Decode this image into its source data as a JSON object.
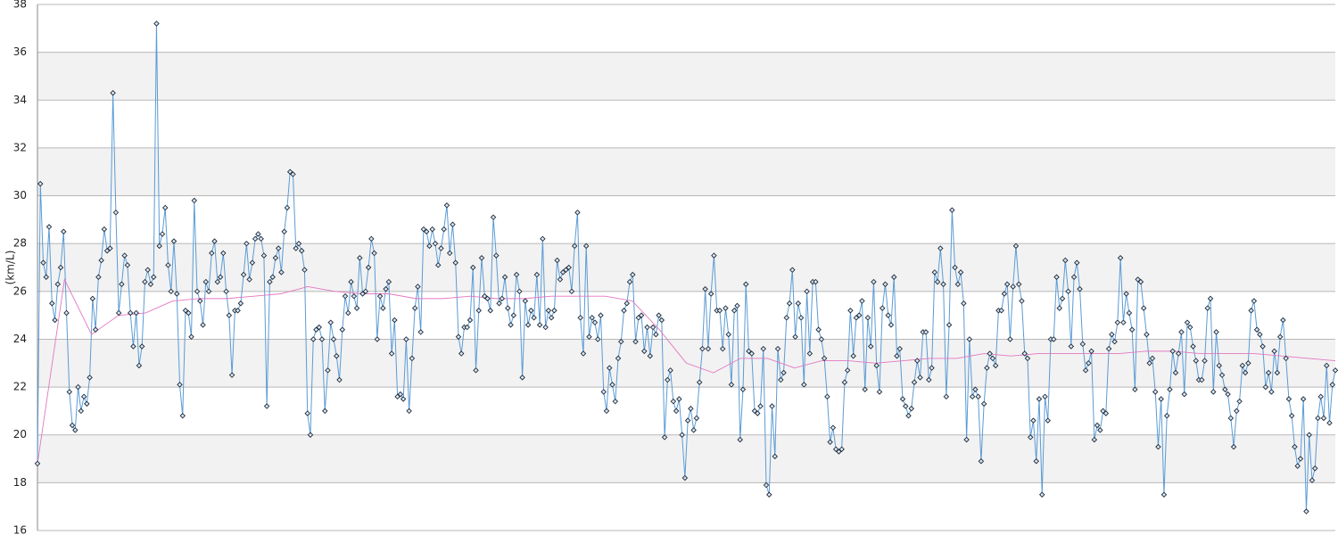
{
  "chart_data": {
    "type": "line",
    "y_label": "(km/L)",
    "ylim": [
      16,
      38
    ],
    "yticks": [
      16,
      18,
      20,
      22,
      24,
      26,
      28,
      30,
      32,
      34,
      36,
      38
    ],
    "grid": true,
    "series": [
      {
        "name": "",
        "color": "#5b9bd5",
        "markers": true,
        "values": [
          18.8,
          30.5,
          27.2,
          26.6,
          28.7,
          25.5,
          24.8,
          26.3,
          27.0,
          28.5,
          25.1,
          21.8,
          20.4,
          20.2,
          22.0,
          21.0,
          21.6,
          21.3,
          22.4,
          25.7,
          24.4,
          26.6,
          27.3,
          28.6,
          27.7,
          27.8,
          34.3,
          29.3,
          25.1,
          26.3,
          27.5,
          27.1,
          25.1,
          23.7,
          25.1,
          22.9,
          23.7,
          26.4,
          26.9,
          26.3,
          26.6,
          37.2,
          27.9,
          28.4,
          29.5,
          27.1,
          26.0,
          28.1,
          25.9,
          22.1,
          20.8,
          25.2,
          25.1,
          24.1,
          29.8,
          26.0,
          25.6,
          24.6,
          26.4,
          26.0,
          27.6,
          28.1,
          26.4,
          26.6,
          27.6,
          26.0,
          25.0,
          22.5,
          25.2,
          25.2,
          25.5,
          26.7,
          28.0,
          26.5,
          27.2,
          28.2,
          28.4,
          28.2,
          27.5,
          21.2,
          26.4,
          26.6,
          27.4,
          27.8,
          26.8,
          28.5,
          29.5,
          31.0,
          30.9,
          27.8,
          28.0,
          27.7,
          26.9,
          20.9,
          20.0,
          24.0,
          24.4,
          24.5,
          24.0,
          21.0,
          22.7,
          24.7,
          24.0,
          23.3,
          22.3,
          24.4,
          25.8,
          25.1,
          26.4,
          25.8,
          25.3,
          27.4,
          25.9,
          26.0,
          27.0,
          28.2,
          27.6,
          24.0,
          25.8,
          25.3,
          26.1,
          26.4,
          23.4,
          24.8,
          21.6,
          21.7,
          21.5,
          24.0,
          21.0,
          23.2,
          25.3,
          26.2,
          24.3,
          28.6,
          28.5,
          27.9,
          28.6,
          28.0,
          27.1,
          27.8,
          28.6,
          29.6,
          27.6,
          28.8,
          27.2,
          24.1,
          23.4,
          24.5,
          24.5,
          24.8,
          27.0,
          22.7,
          25.2,
          27.4,
          25.8,
          25.7,
          25.2,
          29.1,
          27.5,
          25.5,
          25.7,
          26.6,
          25.3,
          24.6,
          25.0,
          26.7,
          26.0,
          22.4,
          25.6,
          24.6,
          25.2,
          24.9,
          26.7,
          24.6,
          28.2,
          24.5,
          25.2,
          24.9,
          25.2,
          27.3,
          26.5,
          26.8,
          26.9,
          27.0,
          26.0,
          27.9,
          29.3,
          24.9,
          23.4,
          27.9,
          24.1,
          24.9,
          24.7,
          24.0,
          25.0,
          21.8,
          21.0,
          22.8,
          22.1,
          21.4,
          23.2,
          23.9,
          25.2,
          25.5,
          26.4,
          26.7,
          23.9,
          24.9,
          25.0,
          23.5,
          24.5,
          23.3,
          24.5,
          24.2,
          25.0,
          24.8,
          19.9,
          22.3,
          22.7,
          21.4,
          21.0,
          21.5,
          20.0,
          18.2,
          20.6,
          21.1,
          20.2,
          20.7,
          22.2,
          23.6,
          26.1,
          23.6,
          25.9,
          27.5,
          25.2,
          25.2,
          23.6,
          25.3,
          24.2,
          22.1,
          25.2,
          25.4,
          19.8,
          21.9,
          26.3,
          23.5,
          23.4,
          21.0,
          20.9,
          21.2,
          23.6,
          17.9,
          17.5,
          21.2,
          19.1,
          23.6,
          22.3,
          22.6,
          24.9,
          25.5,
          26.9,
          24.1,
          25.5,
          24.9,
          22.1,
          26.0,
          23.4,
          26.4,
          26.4,
          24.4,
          24.0,
          23.2,
          21.6,
          19.7,
          20.3,
          19.4,
          19.3,
          19.4,
          22.2,
          22.7,
          25.2,
          23.3,
          24.9,
          25.0,
          25.6,
          21.9,
          24.9,
          23.7,
          26.4,
          22.9,
          21.8,
          25.3,
          26.3,
          25.0,
          24.6,
          26.6,
          23.3,
          23.6,
          21.5,
          21.2,
          20.8,
          21.1,
          22.2,
          23.1,
          22.4,
          24.3,
          24.3,
          22.3,
          22.8,
          26.8,
          26.4,
          27.8,
          26.3,
          21.6,
          24.6,
          29.4,
          27.0,
          26.3,
          26.8,
          25.5,
          19.8,
          24.0,
          21.6,
          21.9,
          21.6,
          18.9,
          21.3,
          22.8,
          23.4,
          23.2,
          22.9,
          25.2,
          25.2,
          25.9,
          26.3,
          24.0,
          26.2,
          27.9,
          26.3,
          25.6,
          23.4,
          23.2,
          19.9,
          20.6,
          18.9,
          21.5,
          17.5,
          21.6,
          20.6,
          24.0,
          24.0,
          26.6,
          25.3,
          25.7,
          27.3,
          26.0,
          23.7,
          26.6,
          27.2,
          26.1,
          23.8,
          22.7,
          23.0,
          23.5,
          19.8,
          20.4,
          20.2,
          21.0,
          20.9,
          23.6,
          24.2,
          23.9,
          24.7,
          27.4,
          24.7,
          25.9,
          25.1,
          24.4,
          21.9,
          26.5,
          26.4,
          25.3,
          24.2,
          23.0,
          23.2,
          21.8,
          19.5,
          21.5,
          17.5,
          20.8,
          21.9,
          23.5,
          22.6,
          23.4,
          24.3,
          21.7,
          24.7,
          24.5,
          23.7,
          23.1,
          22.3,
          22.3,
          23.1,
          25.3,
          25.7,
          21.8,
          24.3,
          22.9,
          22.5,
          21.9,
          21.7,
          20.7,
          19.5,
          21.0,
          21.4,
          22.9,
          22.6,
          23.0,
          25.2,
          25.6,
          24.4,
          24.2,
          23.7,
          22.0,
          22.6,
          21.8,
          23.5,
          22.6,
          24.1,
          24.8,
          23.2,
          21.5,
          20.8,
          19.5,
          18.7,
          19.0,
          21.5,
          16.8,
          20.0,
          18.1,
          18.6,
          20.7,
          21.6,
          20.7,
          22.9,
          20.5,
          22.1,
          22.7
        ]
      },
      {
        "name": "",
        "color": "#e377c2",
        "markers": false,
        "values": [
          18.8,
          26.5,
          24.2,
          25.0,
          25.1,
          25.6,
          25.7,
          25.7,
          25.8,
          25.9,
          26.2,
          26.0,
          25.9,
          25.9,
          25.7,
          25.7,
          25.8,
          25.7,
          25.7,
          25.8,
          25.8,
          25.8,
          25.6,
          24.4,
          23.0,
          22.6,
          23.2,
          23.2,
          22.8,
          23.1,
          23.1,
          23.0,
          23.1,
          23.2,
          23.2,
          23.4,
          23.3,
          23.4,
          23.4,
          23.4,
          23.4,
          23.5,
          23.5,
          23.4,
          23.4,
          23.4,
          23.3,
          23.2,
          23.1
        ]
      }
    ]
  }
}
